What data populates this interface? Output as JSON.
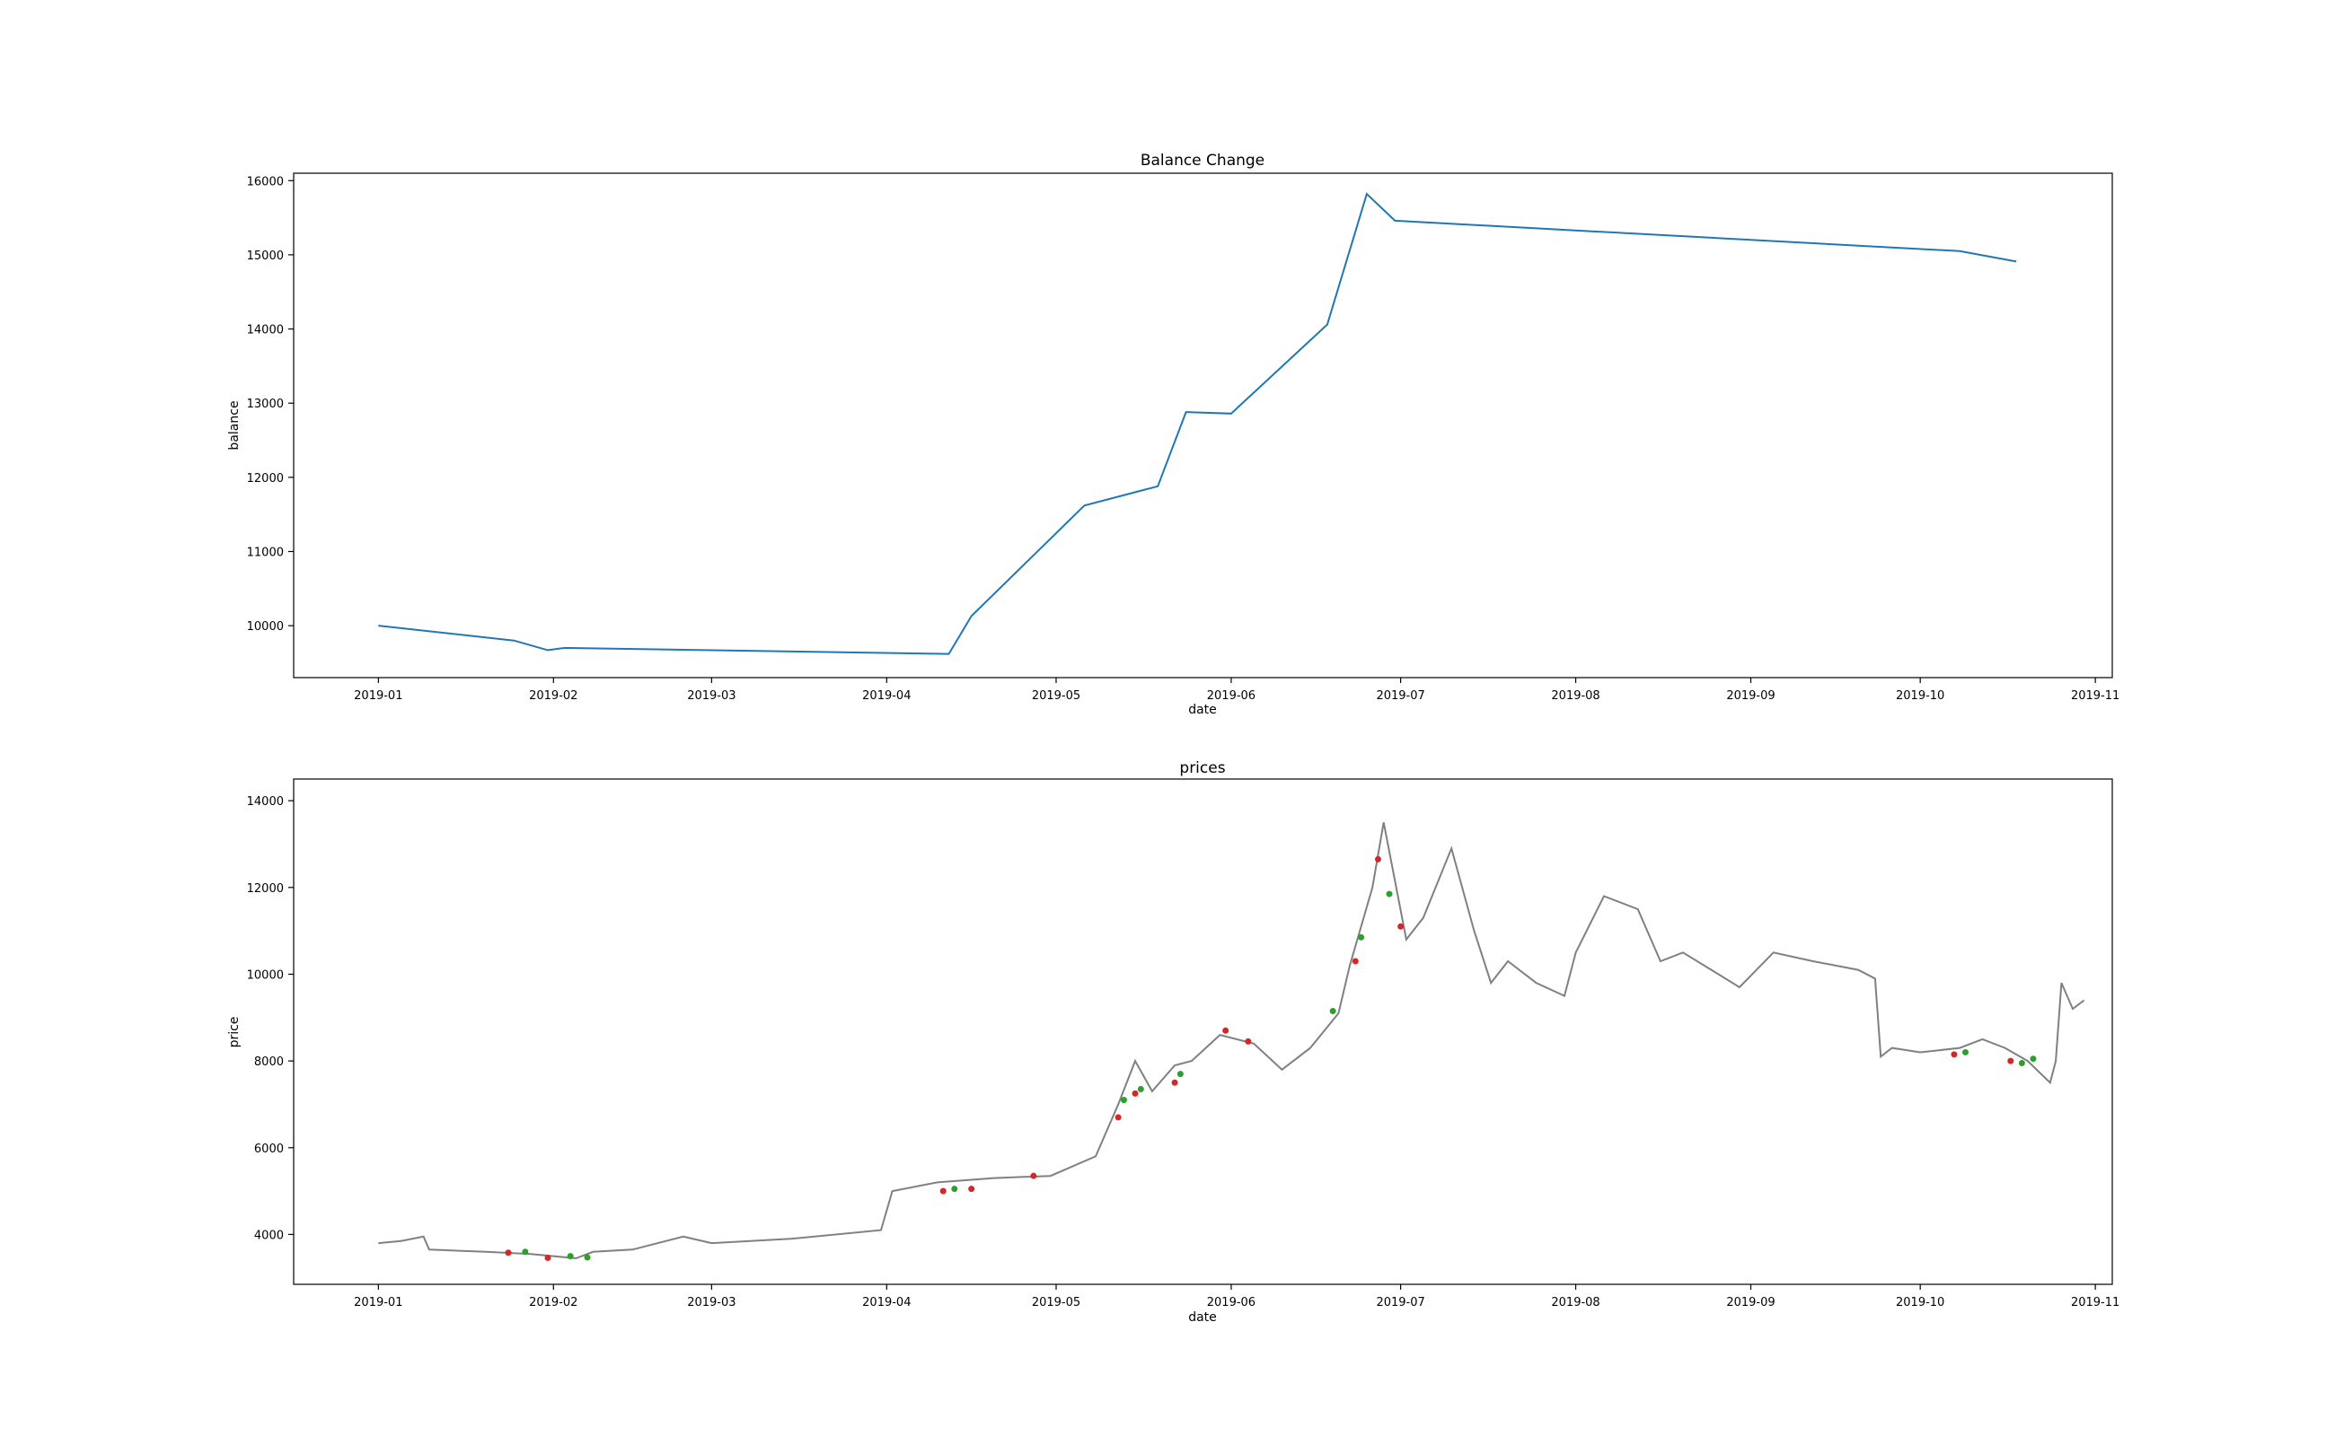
{
  "chart_data": [
    {
      "type": "line",
      "title": "Balance Change",
      "xlabel": "date",
      "ylabel": "balance",
      "xlim": [
        "2018-12-17",
        "2019-11-04"
      ],
      "ylim": [
        9300,
        16100
      ],
      "x_ticks": [
        "2019-01",
        "2019-02",
        "2019-03",
        "2019-04",
        "2019-05",
        "2019-06",
        "2019-07",
        "2019-08",
        "2019-09",
        "2019-10",
        "2019-11"
      ],
      "y_ticks": [
        10000,
        11000,
        12000,
        13000,
        14000,
        15000,
        16000
      ],
      "grid": false,
      "color": "#1f77b4",
      "series": [
        {
          "x": [
            "2019-01-01",
            "2019-01-25",
            "2019-01-31",
            "2019-02-03",
            "2019-04-12",
            "2019-04-16",
            "2019-05-06",
            "2019-05-19",
            "2019-05-24",
            "2019-06-01",
            "2019-06-18",
            "2019-06-25",
            "2019-06-30",
            "2019-10-08",
            "2019-10-18"
          ],
          "y": [
            10000,
            9800,
            9670,
            9700,
            9620,
            10130,
            11620,
            11880,
            12880,
            12860,
            14060,
            15820,
            15460,
            15050,
            14910
          ]
        }
      ]
    },
    {
      "type": "line",
      "title": "prices",
      "xlabel": "date",
      "ylabel": "price",
      "xlim": [
        "2018-12-17",
        "2019-11-04"
      ],
      "ylim": [
        2850,
        14500
      ],
      "x_ticks": [
        "2019-01",
        "2019-02",
        "2019-03",
        "2019-04",
        "2019-05",
        "2019-06",
        "2019-07",
        "2019-08",
        "2019-09",
        "2019-10",
        "2019-11"
      ],
      "y_ticks": [
        4000,
        6000,
        8000,
        10000,
        12000,
        14000
      ],
      "grid": false,
      "color": "#808080",
      "series": [
        {
          "x": [
            "2019-01-01",
            "2019-01-05",
            "2019-01-09",
            "2019-01-10",
            "2019-01-20",
            "2019-01-28",
            "2019-02-05",
            "2019-02-08",
            "2019-02-15",
            "2019-02-24",
            "2019-03-01",
            "2019-03-15",
            "2019-03-31",
            "2019-04-02",
            "2019-04-10",
            "2019-04-20",
            "2019-04-30",
            "2019-05-08",
            "2019-05-12",
            "2019-05-15",
            "2019-05-18",
            "2019-05-22",
            "2019-05-25",
            "2019-05-30",
            "2019-06-05",
            "2019-06-10",
            "2019-06-15",
            "2019-06-20",
            "2019-06-22",
            "2019-06-26",
            "2019-06-28",
            "2019-07-02",
            "2019-07-05",
            "2019-07-10",
            "2019-07-14",
            "2019-07-17",
            "2019-07-20",
            "2019-07-25",
            "2019-07-30",
            "2019-08-01",
            "2019-08-06",
            "2019-08-12",
            "2019-08-16",
            "2019-08-20",
            "2019-08-25",
            "2019-08-30",
            "2019-09-05",
            "2019-09-12",
            "2019-09-20",
            "2019-09-23",
            "2019-09-24",
            "2019-09-26",
            "2019-10-01",
            "2019-10-08",
            "2019-10-12",
            "2019-10-16",
            "2019-10-20",
            "2019-10-24",
            "2019-10-25",
            "2019-10-26",
            "2019-10-28",
            "2019-10-30"
          ],
          "y": [
            3800,
            3850,
            3950,
            3650,
            3600,
            3550,
            3450,
            3600,
            3650,
            3950,
            3800,
            3900,
            4100,
            5000,
            5200,
            5300,
            5350,
            5800,
            7000,
            8000,
            7300,
            7900,
            8000,
            8600,
            8400,
            7800,
            8300,
            9100,
            10200,
            12000,
            13500,
            10800,
            11300,
            12900,
            11000,
            9800,
            10300,
            9800,
            9500,
            10500,
            11800,
            11500,
            10300,
            10500,
            10100,
            9700,
            10500,
            10300,
            10100,
            9900,
            8100,
            8300,
            8200,
            8300,
            8500,
            8300,
            8000,
            7500,
            8000,
            9800,
            9200,
            9400
          ]
        }
      ],
      "buy_markers": {
        "color": "#2ca02c",
        "points": [
          {
            "x": "2019-01-27",
            "y": 3600
          },
          {
            "x": "2019-02-04",
            "y": 3500
          },
          {
            "x": "2019-02-07",
            "y": 3470
          },
          {
            "x": "2019-04-13",
            "y": 5050
          },
          {
            "x": "2019-05-13",
            "y": 7100
          },
          {
            "x": "2019-05-16",
            "y": 7350
          },
          {
            "x": "2019-05-23",
            "y": 7700
          },
          {
            "x": "2019-06-19",
            "y": 9150
          },
          {
            "x": "2019-06-24",
            "y": 10850
          },
          {
            "x": "2019-06-29",
            "y": 11850
          },
          {
            "x": "2019-10-09",
            "y": 8200
          },
          {
            "x": "2019-10-19",
            "y": 7950
          },
          {
            "x": "2019-10-21",
            "y": 8050
          }
        ]
      },
      "sell_markers": {
        "color": "#d62728",
        "points": [
          {
            "x": "2019-01-24",
            "y": 3580
          },
          {
            "x": "2019-01-31",
            "y": 3460
          },
          {
            "x": "2019-04-11",
            "y": 5000
          },
          {
            "x": "2019-04-16",
            "y": 5050
          },
          {
            "x": "2019-04-27",
            "y": 5350
          },
          {
            "x": "2019-05-12",
            "y": 6700
          },
          {
            "x": "2019-05-15",
            "y": 7250
          },
          {
            "x": "2019-05-22",
            "y": 7500
          },
          {
            "x": "2019-05-31",
            "y": 8700
          },
          {
            "x": "2019-06-04",
            "y": 8450
          },
          {
            "x": "2019-06-23",
            "y": 10300
          },
          {
            "x": "2019-06-27",
            "y": 12650
          },
          {
            "x": "2019-07-01",
            "y": 11100
          },
          {
            "x": "2019-10-07",
            "y": 8150
          },
          {
            "x": "2019-10-17",
            "y": 8000
          }
        ]
      }
    }
  ]
}
